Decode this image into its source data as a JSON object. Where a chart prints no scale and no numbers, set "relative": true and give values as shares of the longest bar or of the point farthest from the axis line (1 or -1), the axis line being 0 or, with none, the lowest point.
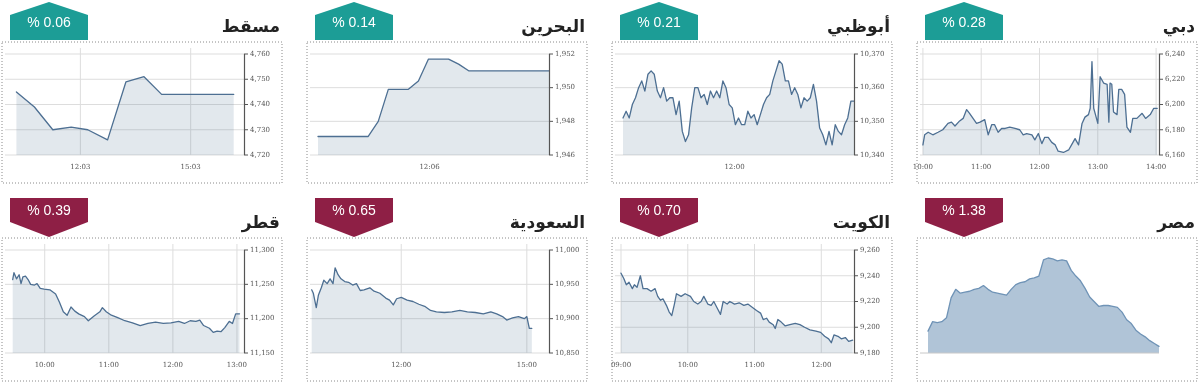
{
  "chart_data": [
    {
      "type": "area",
      "title": "دبي",
      "subtitle": "% 0.28",
      "grid": true,
      "xlim": [
        9.95,
        14.05
      ],
      "ylim": [
        6160,
        6240
      ],
      "xticks": [
        {
          "value": 10,
          "label": "10:00"
        },
        {
          "value": 11,
          "label": "11:00"
        },
        {
          "value": 12,
          "label": "12:00"
        },
        {
          "value": 13,
          "label": "13:00"
        },
        {
          "value": 14,
          "label": "14:00"
        }
      ],
      "yticks": [
        {
          "value": 6160,
          "label": "6,160"
        },
        {
          "value": 6180,
          "label": "6,180"
        },
        {
          "value": 6200,
          "label": "6,200"
        },
        {
          "value": 6220,
          "label": "6,220"
        },
        {
          "value": 6240,
          "label": "6,240"
        }
      ],
      "x": [
        10.0,
        10.03,
        10.09,
        10.17,
        10.26,
        10.34,
        10.43,
        10.49,
        10.55,
        10.63,
        10.69,
        10.75,
        10.8,
        10.86,
        10.92,
        10.98,
        11.06,
        11.12,
        11.18,
        11.23,
        11.29,
        11.35,
        11.41,
        11.49,
        11.58,
        11.66,
        11.72,
        11.78,
        11.87,
        11.92,
        11.98,
        12.04,
        12.09,
        12.15,
        12.21,
        12.27,
        12.32,
        12.41,
        12.5,
        12.55,
        12.61,
        12.67,
        12.73,
        12.78,
        12.84,
        12.87,
        12.9,
        12.93,
        12.96,
        13.0,
        13.04,
        13.1,
        13.16,
        13.19,
        13.21,
        13.24,
        13.27,
        13.33,
        13.36,
        13.41,
        13.46,
        13.5,
        13.56,
        13.6,
        13.67,
        13.76,
        13.82,
        13.9,
        13.96,
        14.02
      ],
      "series": [
        {
          "color": "#4d6f92",
          "values": [
            6168,
            6176,
            6178,
            6176,
            6178,
            6180,
            6185,
            6186,
            6183,
            6187,
            6189,
            6196,
            6193,
            6189,
            6185,
            6186,
            6188,
            6176,
            6184,
            6184,
            6178,
            6181,
            6181,
            6182,
            6181,
            6180,
            6176,
            6177,
            6176,
            6172,
            6177,
            6169,
            6174,
            6174,
            6170,
            6168,
            6163,
            6162,
            6164,
            6168,
            6173,
            6168,
            6185,
            6190,
            6192,
            6197,
            6234,
            6197,
            6192,
            6185,
            6222,
            6217,
            6216,
            6186,
            6217,
            6216,
            6194,
            6192,
            6212,
            6212,
            6208,
            6182,
            6178,
            6189,
            6189,
            6193,
            6189,
            6192,
            6197,
            6197
          ]
        }
      ]
    },
    {
      "type": "area",
      "title": "أبوظبي",
      "subtitle": "% 0.21",
      "grid": "y",
      "ylim": [
        10340,
        10370
      ],
      "annotations": [
        "12:00"
      ],
      "yticks": [
        {
          "value": 10340,
          "label": "10,340"
        },
        {
          "value": 10350,
          "label": "10,350"
        },
        {
          "value": 10360,
          "label": "10,360"
        },
        {
          "value": 10370,
          "label": "10,370"
        }
      ],
      "categories": [
        null,
        null,
        null,
        null,
        null,
        null,
        null,
        null,
        null,
        null,
        null,
        null,
        null,
        null,
        null,
        null,
        null,
        null,
        null,
        null,
        null,
        null,
        null,
        null,
        null,
        null,
        null,
        null,
        null,
        null,
        null,
        null,
        null,
        null,
        null,
        null,
        null,
        null,
        null,
        null,
        null,
        null,
        null,
        null,
        null,
        null,
        null,
        null,
        null,
        null,
        null,
        null,
        null,
        null,
        null,
        null,
        null,
        null,
        null,
        null,
        null,
        null,
        null,
        null,
        null,
        null,
        null,
        null,
        null,
        null,
        null,
        null,
        null,
        null,
        null
      ],
      "series": [
        {
          "color": "#4d6f92",
          "values": [
            10351,
            10353,
            10351,
            10355,
            10357,
            10360,
            10362,
            10359,
            10364,
            10365,
            10364,
            10359,
            10357,
            10360,
            10356,
            10357,
            10357,
            10352,
            10356,
            10347,
            10344,
            10346,
            10354,
            10360,
            10360,
            10357,
            10358,
            10355,
            10359,
            10357,
            10359,
            10357,
            10362,
            10360,
            10355,
            10354,
            10349,
            10351,
            10349,
            10349,
            10353,
            10351,
            10352,
            10349,
            10352,
            10355,
            10357,
            10358,
            10362,
            10365,
            10368,
            10367,
            10362,
            10362,
            10358,
            10360,
            10358,
            10354,
            10357,
            10356,
            10357,
            10361,
            10356,
            10348,
            10346,
            10343,
            10347,
            10343,
            10349,
            10347,
            10346,
            10349,
            10351,
            10356,
            10356
          ]
        }
      ]
    },
    {
      "type": "area",
      "title": "البحرين",
      "subtitle": "% 0.14",
      "grid": "y",
      "ylim": [
        1946,
        1952
      ],
      "annotations": [
        "12:06"
      ],
      "yticks": [
        {
          "value": 1946,
          "label": "1,946"
        },
        {
          "value": 1948,
          "label": "1,948"
        },
        {
          "value": 1950,
          "label": "1,950"
        },
        {
          "value": 1952,
          "label": "1,952"
        }
      ],
      "categories": [
        null,
        null,
        null,
        null,
        null,
        null,
        null,
        null,
        null,
        null,
        null,
        null,
        null,
        null,
        null,
        null,
        null,
        null,
        null,
        null,
        null,
        null,
        null,
        null
      ],
      "series": [
        {
          "color": "#4d6f92",
          "values": [
            1947.1,
            1947.1,
            1947.1,
            1947.1,
            1947.1,
            1947.1,
            1948.0,
            1949.9,
            1949.9,
            1949.9,
            1950.4,
            1951.7,
            1951.7,
            1951.7,
            1951.4,
            1951.0,
            1951.0,
            1951.0,
            1951.0,
            1951.0,
            1951.0,
            1951.0,
            1951.0,
            1951.0
          ]
        }
      ]
    },
    {
      "type": "area",
      "title": "مسقط",
      "subtitle": "% 0.06",
      "grid": true,
      "xlim": [
        10.0,
        16.5
      ],
      "ylim": [
        4720,
        4760
      ],
      "xticks": [
        {
          "value": 12.05,
          "label": "12:03"
        },
        {
          "value": 15.05,
          "label": "15:03"
        }
      ],
      "yticks": [
        {
          "value": 4720,
          "label": "4,720"
        },
        {
          "value": 4730,
          "label": "4,730"
        },
        {
          "value": 4740,
          "label": "4,740"
        },
        {
          "value": 4750,
          "label": "4,750"
        },
        {
          "value": 4760,
          "label": "4,760"
        }
      ],
      "x": [
        10.31,
        10.8,
        11.3,
        11.8,
        12.25,
        12.79,
        13.29,
        13.78,
        14.26,
        16.22
      ],
      "series": [
        {
          "color": "#4d6f92",
          "values": [
            4745,
            4739,
            4730,
            4731,
            4730,
            4726,
            4749,
            4751,
            4744,
            4744
          ]
        }
      ]
    },
    {
      "type": "area",
      "title": "مصر",
      "subtitle": "% 1.38",
      "relative": true,
      "categories": [
        null,
        null,
        null,
        null,
        null,
        null,
        null,
        null,
        null,
        null,
        null,
        null,
        null,
        null,
        null,
        null,
        null,
        null,
        null,
        null,
        null,
        null,
        null,
        null,
        null,
        null,
        null,
        null,
        null,
        null,
        null,
        null,
        null,
        null,
        null,
        null,
        null,
        null,
        null,
        null,
        null,
        null,
        null,
        null,
        null,
        null,
        null,
        null,
        null,
        null,
        null
      ],
      "series": [
        {
          "color": "#6f93b6",
          "values": [
            0.23,
            0.33,
            0.32,
            0.33,
            0.37,
            0.58,
            0.67,
            0.63,
            0.64,
            0.65,
            0.67,
            0.68,
            0.71,
            0.67,
            0.64,
            0.63,
            0.62,
            0.61,
            0.67,
            0.72,
            0.74,
            0.75,
            0.78,
            0.79,
            0.81,
            0.98,
            1,
            0.99,
            0.97,
            0.98,
            0.97,
            0.87,
            0.81,
            0.76,
            0.68,
            0.59,
            0.54,
            0.49,
            0.5,
            0.5,
            0.49,
            0.48,
            0.43,
            0.35,
            0.31,
            0.24,
            0.2,
            0.17,
            0.13,
            0.1,
            0.07
          ]
        }
      ]
    },
    {
      "type": "area",
      "title": "الكويت",
      "subtitle": "% 0.70",
      "grid": true,
      "xlim": [
        8.91,
        12.49
      ],
      "ylim": [
        9180,
        9260
      ],
      "xticks": [
        {
          "value": 9,
          "label": "09:00"
        },
        {
          "value": 10,
          "label": "10:00"
        },
        {
          "value": 11,
          "label": "11:00"
        },
        {
          "value": 12,
          "label": "12:00"
        }
      ],
      "yticks": [
        {
          "value": 9180,
          "label": "9,180"
        },
        {
          "value": 9200,
          "label": "9,200"
        },
        {
          "value": 9220,
          "label": "9,220"
        },
        {
          "value": 9240,
          "label": "9,240"
        },
        {
          "value": 9260,
          "label": "9,260"
        }
      ],
      "x": [
        9.0,
        9.04,
        9.08,
        9.12,
        9.17,
        9.2,
        9.24,
        9.29,
        9.33,
        9.39,
        9.45,
        9.51,
        9.55,
        9.59,
        9.63,
        9.68,
        9.72,
        9.76,
        9.8,
        9.83,
        9.9,
        9.96,
        10.04,
        10.09,
        10.15,
        10.2,
        10.24,
        10.3,
        10.35,
        10.39,
        10.45,
        10.49,
        10.53,
        10.59,
        10.63,
        10.7,
        10.77,
        10.84,
        10.9,
        10.98,
        11.03,
        11.09,
        11.13,
        11.18,
        11.22,
        11.28,
        11.31,
        11.35,
        11.4,
        11.46,
        11.53,
        11.61,
        11.68,
        11.75,
        11.83,
        11.92,
        11.99,
        12.05,
        12.11,
        12.15,
        12.19,
        12.25,
        12.3,
        12.36,
        12.41,
        12.47
      ],
      "series": [
        {
          "color": "#4d6f92",
          "values": [
            9242,
            9238,
            9233,
            9235,
            9230,
            9233,
            9231,
            9240,
            9230,
            9230,
            9228,
            9230,
            9224,
            9221,
            9222,
            9217,
            9212,
            9209,
            9218,
            9226,
            9224,
            9226,
            9224,
            9220,
            9218,
            9220,
            9224,
            9218,
            9217,
            9220,
            9214,
            9210,
            9220,
            9218,
            9220,
            9218,
            9219,
            9217,
            9218,
            9215,
            9213,
            9211,
            9206,
            9207,
            9204,
            9202,
            9199,
            9206,
            9204,
            9201,
            9202,
            9203,
            9202,
            9200,
            9198,
            9197,
            9196,
            9193,
            9191,
            9188,
            9194,
            9193,
            9191,
            9192,
            9189,
            9190
          ]
        }
      ]
    },
    {
      "type": "area",
      "title": "السعودية",
      "subtitle": "% 0.65",
      "grid": true,
      "xlim": [
        9.82,
        15.53
      ],
      "ylim": [
        10850,
        11000
      ],
      "xticks": [
        {
          "value": 12,
          "label": "12:00"
        },
        {
          "value": 15,
          "label": "15:00"
        }
      ],
      "yticks": [
        {
          "value": 10850,
          "label": "10,850"
        },
        {
          "value": 10900,
          "label": "10,900"
        },
        {
          "value": 10950,
          "label": "10,950"
        },
        {
          "value": 11000,
          "label": "11,000"
        }
      ],
      "x": [
        9.86,
        9.9,
        9.97,
        10.02,
        10.09,
        10.15,
        10.23,
        10.3,
        10.37,
        10.42,
        10.49,
        10.56,
        10.65,
        10.74,
        10.84,
        10.93,
        11.02,
        11.11,
        11.25,
        11.35,
        11.49,
        11.63,
        11.72,
        11.81,
        11.89,
        12.0,
        12.14,
        12.28,
        12.42,
        12.56,
        12.7,
        12.84,
        13.03,
        13.21,
        13.4,
        13.58,
        13.77,
        13.96,
        14.14,
        14.28,
        14.42,
        14.52,
        14.66,
        14.8,
        14.94,
        15.0,
        15.06,
        15.12
      ],
      "series": [
        {
          "color": "#4d6f92",
          "values": [
            10942,
            10937,
            10916,
            10934,
            10945,
            10956,
            10951,
            10958,
            10951,
            10974,
            10964,
            10958,
            10954,
            10953,
            10949,
            10951,
            10941,
            10942,
            10945,
            10940,
            10937,
            10930,
            10927,
            10920,
            10929,
            10931,
            10927,
            10925,
            10921,
            10918,
            10912,
            10910,
            10909,
            10910,
            10912,
            10910,
            10909,
            10907,
            10910,
            10907,
            10903,
            10898,
            10901,
            10903,
            10900,
            10903,
            10886,
            10886
          ]
        }
      ]
    },
    {
      "type": "area",
      "title": "قطر",
      "subtitle": "% 0.39",
      "grid": true,
      "xlim": [
        9.38,
        13.11
      ],
      "ylim": [
        11150,
        11300
      ],
      "xticks": [
        {
          "value": 10,
          "label": "10:00"
        },
        {
          "value": 11,
          "label": "11:00"
        },
        {
          "value": 12,
          "label": "12:00"
        },
        {
          "value": 13,
          "label": "13:00"
        }
      ],
      "yticks": [
        {
          "value": 11150,
          "label": "11,150"
        },
        {
          "value": 11200,
          "label": "11,200"
        },
        {
          "value": 11250,
          "label": "11,250"
        },
        {
          "value": 11300,
          "label": "11,300"
        }
      ],
      "x": [
        9.5,
        9.52,
        9.56,
        9.6,
        9.63,
        9.66,
        9.7,
        9.74,
        9.78,
        9.84,
        9.88,
        9.93,
        9.99,
        10.08,
        10.17,
        10.23,
        10.29,
        10.35,
        10.41,
        10.47,
        10.53,
        10.62,
        10.68,
        10.77,
        10.86,
        10.9,
        10.96,
        11.04,
        11.13,
        11.25,
        11.37,
        11.49,
        11.61,
        11.73,
        11.85,
        11.97,
        12.09,
        12.18,
        12.27,
        12.36,
        12.42,
        12.48,
        12.57,
        12.63,
        12.69,
        12.75,
        12.81,
        12.88,
        12.93,
        12.98,
        13.04
      ],
      "series": [
        {
          "color": "#4d6f92",
          "values": [
            11257,
            11267,
            11258,
            11264,
            11251,
            11261,
            11262,
            11257,
            11250,
            11249,
            11251,
            11244,
            11243,
            11242,
            11236,
            11224,
            11210,
            11205,
            11217,
            11211,
            11207,
            11203,
            11197,
            11204,
            11210,
            11216,
            11210,
            11205,
            11202,
            11197,
            11194,
            11190,
            11193,
            11195,
            11193,
            11194,
            11196,
            11193,
            11197,
            11196,
            11198,
            11190,
            11186,
            11180,
            11182,
            11181,
            11187,
            11196,
            11193,
            11207,
            11207
          ]
        }
      ]
    }
  ]
}
